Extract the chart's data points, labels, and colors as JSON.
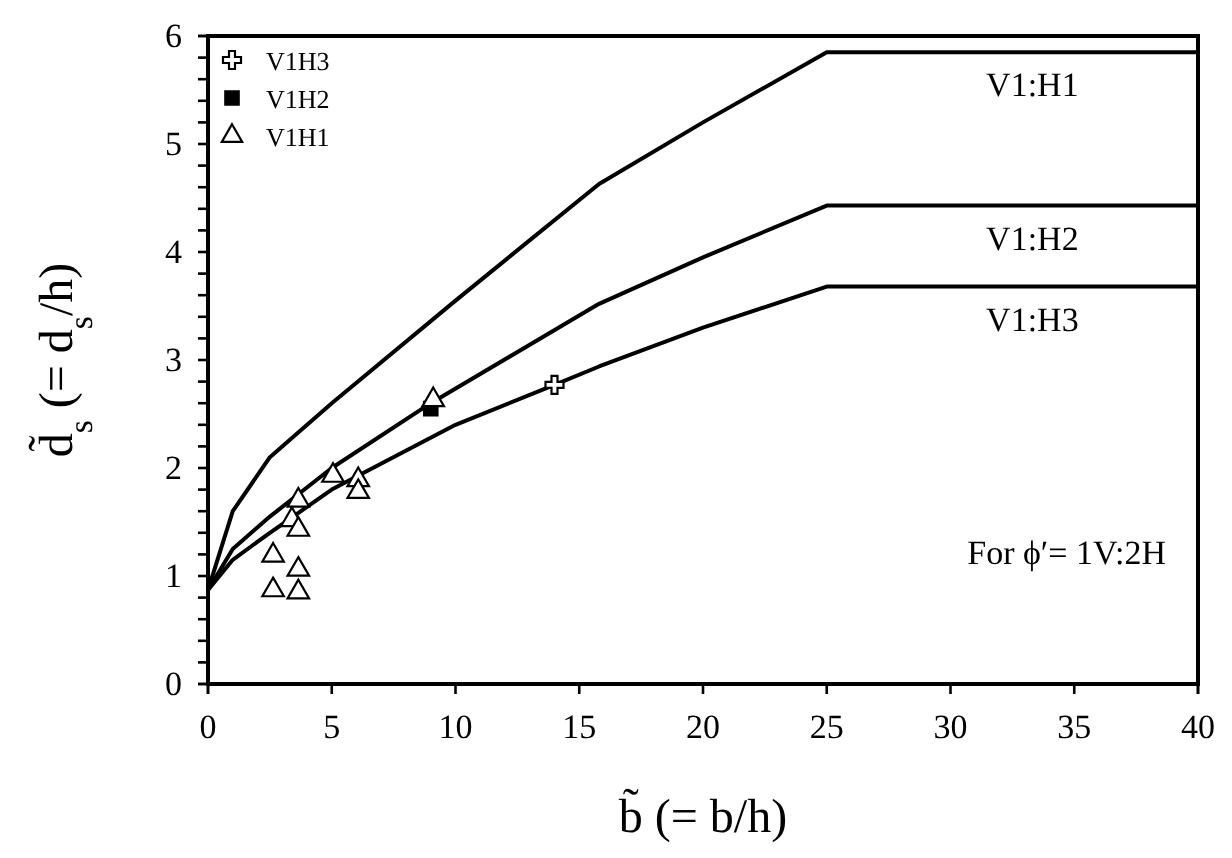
{
  "chart_data": {
    "type": "line",
    "xlabel": "b̃ (= b/h)",
    "ylabel": "d̃$_{s}$ (= d$_{s}$/h)",
    "xlim": [
      0,
      40
    ],
    "xticks": [
      0,
      5,
      10,
      15,
      20,
      25,
      30,
      35,
      40
    ],
    "ylim": [
      0,
      6
    ],
    "yticks": [
      0,
      {
        "value": 0.2,
        "label": null
      },
      {
        "value": 0.4,
        "label": null
      },
      {
        "value": 0.6,
        "label": null
      },
      {
        "value": 0.8,
        "label": null
      },
      1,
      {
        "value": 1.2,
        "label": null
      },
      {
        "value": 1.4,
        "label": null
      },
      {
        "value": 1.6,
        "label": null
      },
      {
        "value": 1.8,
        "label": null
      },
      2,
      {
        "value": 2.2,
        "label": null
      },
      {
        "value": 2.4,
        "label": null
      },
      {
        "value": 2.6,
        "label": null
      },
      {
        "value": 2.8,
        "label": null
      },
      3,
      {
        "value": 3.2,
        "label": null
      },
      {
        "value": 3.4,
        "label": null
      },
      {
        "value": 3.6,
        "label": null
      },
      {
        "value": 3.8,
        "label": null
      },
      4,
      {
        "value": 4.2,
        "label": null
      },
      {
        "value": 4.4,
        "label": null
      },
      {
        "value": 4.6,
        "label": null
      },
      {
        "value": 4.8,
        "label": null
      },
      5,
      {
        "value": 5.2,
        "label": null
      },
      {
        "value": 5.4,
        "label": null
      },
      {
        "value": 5.6,
        "label": null
      },
      {
        "value": 5.8,
        "label": null
      },
      6
    ],
    "grid": false,
    "legend": "top left",
    "line_style": "solid",
    "annotations": [
      "For ϕ′= 1V:2H"
    ],
    "series": [
      {
        "name": "V1:H1",
        "color": "#000000",
        "x": [
          0,
          1,
          2.5,
          5,
          10,
          15.8,
          20,
          25,
          40
        ],
        "values": [
          0.87,
          1.6,
          2.1,
          2.6,
          3.55,
          4.63,
          5.2,
          5.85,
          5.85
        ]
      },
      {
        "name": "V1:H2",
        "color": "#000000",
        "x": [
          0,
          1,
          2.5,
          5,
          9,
          15.8,
          20,
          25,
          40
        ],
        "values": [
          0.87,
          1.25,
          1.55,
          2.0,
          2.6,
          3.52,
          3.95,
          4.43,
          4.43
        ]
      },
      {
        "name": "V1:H3",
        "color": "#000000",
        "x": [
          0,
          1,
          2.5,
          5,
          10,
          14,
          15.8,
          20,
          25,
          40
        ],
        "values": [
          0.87,
          1.15,
          1.4,
          1.8,
          2.4,
          2.77,
          2.94,
          3.3,
          3.68,
          3.68
        ]
      },
      {
        "name": "V1H3",
        "type": "scatter",
        "marker": "cross",
        "color": "#000000",
        "x": [
          14
        ],
        "values": [
          2.77
        ]
      },
      {
        "name": "V1H2",
        "type": "scatter",
        "marker": "square",
        "color": "#000000",
        "x": [
          9
        ],
        "values": [
          2.55
        ]
      },
      {
        "name": "V1H1",
        "type": "scatter",
        "marker": "triangle",
        "color": "#000000",
        "x": [
          9.1,
          5.05,
          6.07,
          6.07,
          3.65,
          3.39,
          3.65,
          2.63,
          3.65,
          2.63,
          3.65
        ],
        "values": [
          2.63,
          1.93,
          1.89,
          1.78,
          1.7,
          1.52,
          1.43,
          1.19,
          1.06,
          0.87,
          0.85
        ]
      }
    ]
  }
}
